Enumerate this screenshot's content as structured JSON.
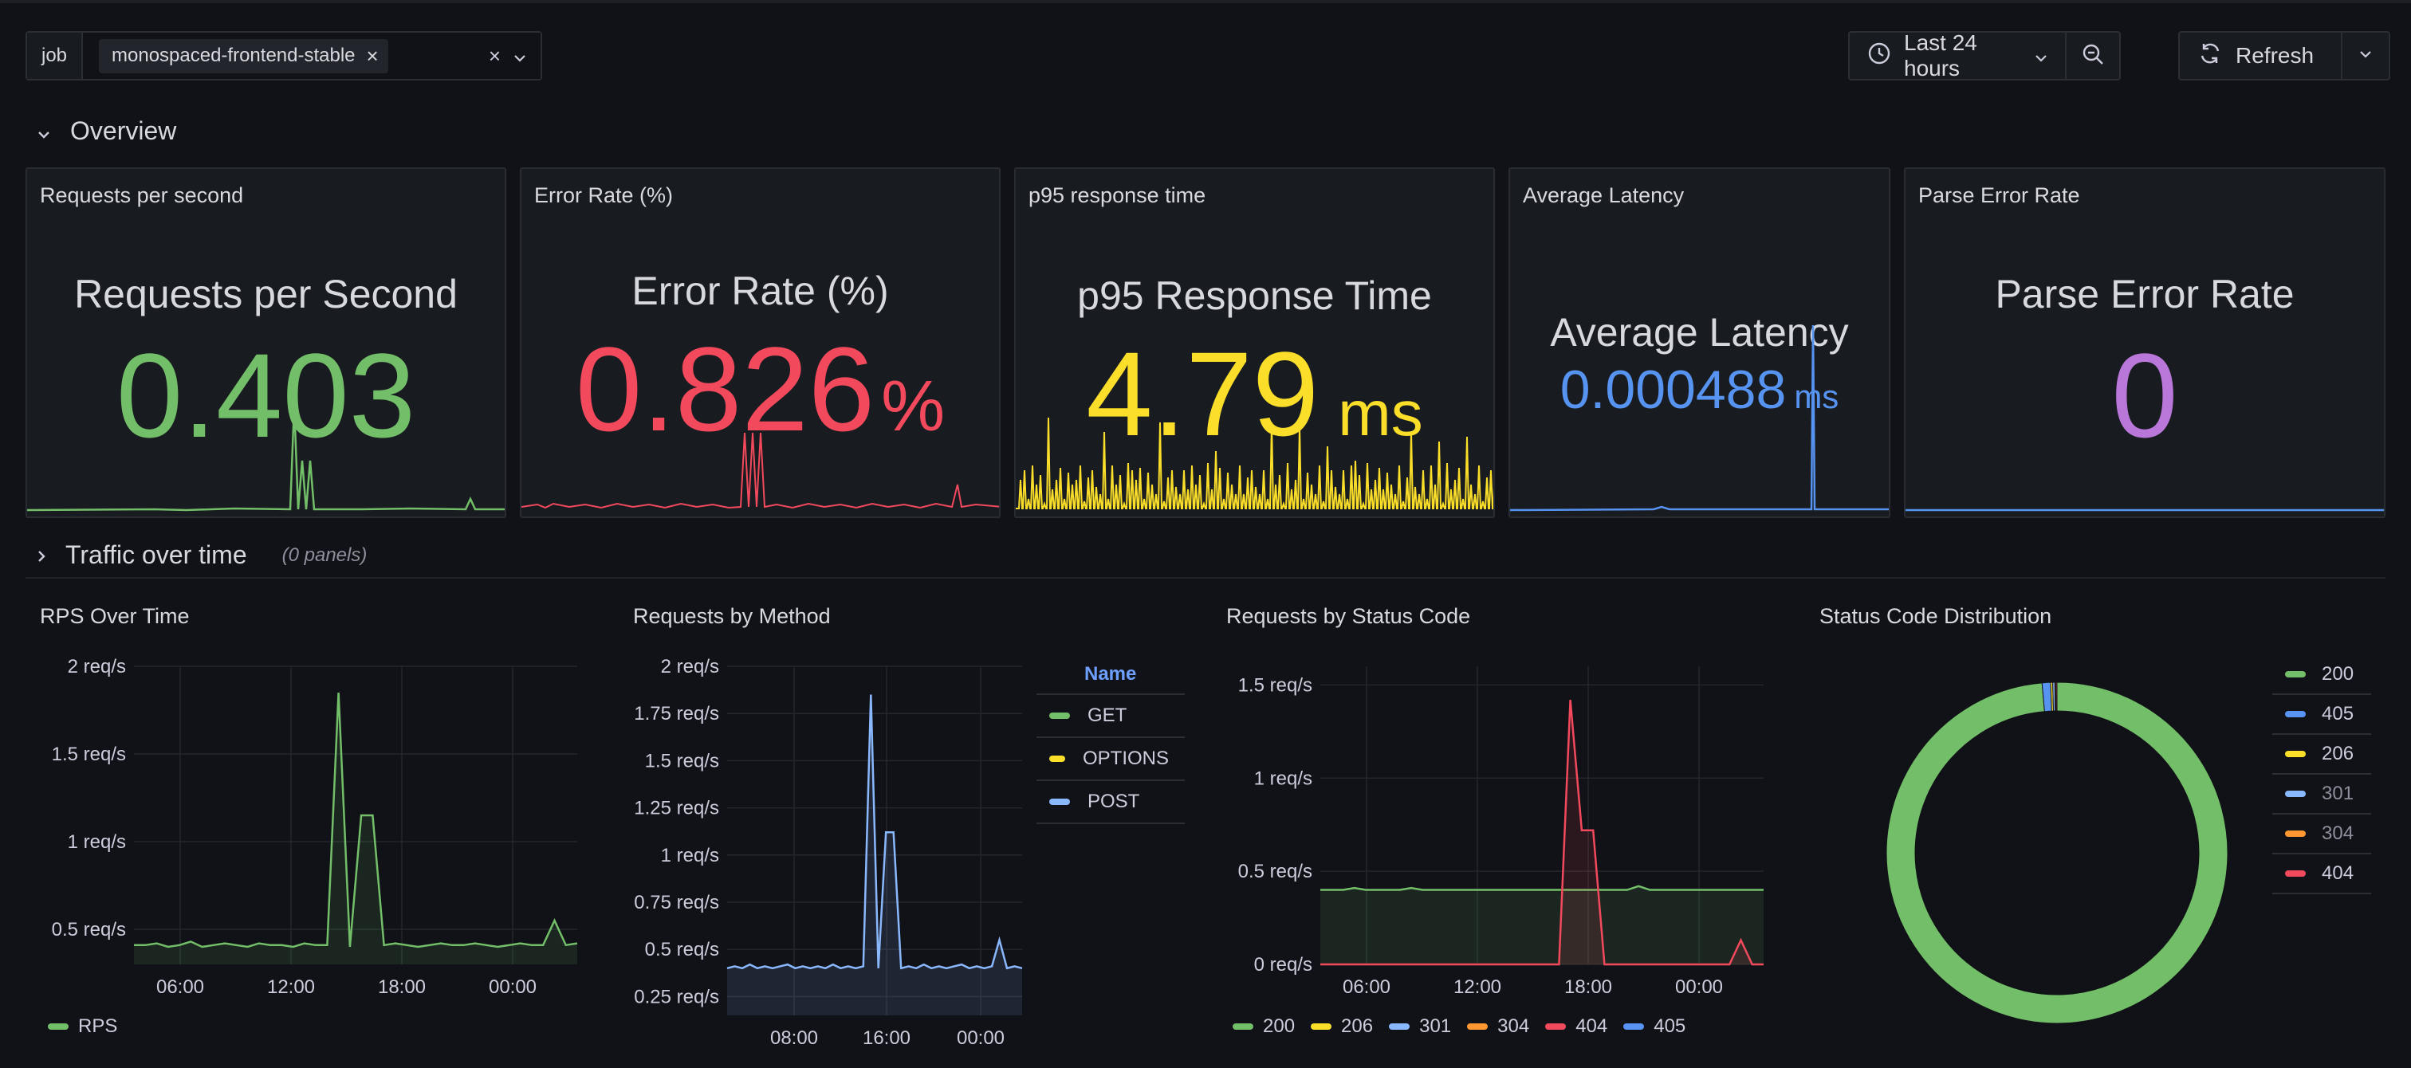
{
  "variables": {
    "job_label": "job",
    "job_value": "monospaced-frontend-stable"
  },
  "time_range": {
    "label": "Last 24 hours"
  },
  "refresh": {
    "label": "Refresh"
  },
  "rows": {
    "overview": {
      "title": "Overview"
    },
    "traffic": {
      "title": "Traffic over time",
      "sub": "(0 panels)"
    }
  },
  "stats": [
    {
      "panel_title": "Requests per second",
      "title": "Requests per Second",
      "value": "0.403",
      "unit": "",
      "color": "#73bf69"
    },
    {
      "panel_title": "Error Rate (%)",
      "title": "Error Rate (%)",
      "value": "0.826",
      "unit": "%",
      "color": "#f2495c"
    },
    {
      "panel_title": "p95 response time",
      "title": "p95 Response Time",
      "value": "4.79",
      "unit": "ms",
      "color": "#fade2a"
    },
    {
      "panel_title": "Average Latency",
      "title": "Average Latency",
      "value": "0.000488",
      "unit": "ms",
      "color": "#5794f2"
    },
    {
      "panel_title": "Parse Error Rate",
      "title": "Parse Error Rate",
      "value": "0",
      "unit": "",
      "color": "#b877d9"
    }
  ],
  "chart_data": [
    {
      "type": "line",
      "title": "RPS Over Time",
      "x_ticks": [
        "06:00",
        "12:00",
        "18:00",
        "00:00"
      ],
      "y_ticks": [
        "2 req/s",
        "1.5 req/s",
        "1 req/s",
        "0.5 req/s"
      ],
      "ylim": [
        0.3,
        2.0
      ],
      "series": [
        {
          "name": "RPS",
          "color": "#73bf69",
          "values": [
            0.41,
            0.41,
            0.42,
            0.4,
            0.41,
            0.43,
            0.4,
            0.41,
            0.42,
            0.41,
            0.4,
            0.42,
            0.41,
            0.41,
            0.4,
            0.42,
            0.41,
            0.41,
            1.85,
            0.4,
            1.15,
            1.15,
            0.41,
            0.42,
            0.41,
            0.4,
            0.41,
            0.42,
            0.41,
            0.41,
            0.42,
            0.41,
            0.4,
            0.41,
            0.42,
            0.41,
            0.41,
            0.55,
            0.41,
            0.42
          ]
        }
      ]
    },
    {
      "type": "line",
      "title": "Requests by Method",
      "x_ticks": [
        "08:00",
        "16:00",
        "00:00"
      ],
      "y_ticks": [
        "2 req/s",
        "1.75 req/s",
        "1.5 req/s",
        "1.25 req/s",
        "1 req/s",
        "0.75 req/s",
        "0.5 req/s",
        "0.25 req/s"
      ],
      "ylim": [
        0.15,
        2.0
      ],
      "legend_header": "Name",
      "series": [
        {
          "name": "GET",
          "color": "#73bf69",
          "values": []
        },
        {
          "name": "OPTIONS",
          "color": "#fade2a",
          "values": []
        },
        {
          "name": "POST",
          "color": "#8ab8ff",
          "values": [
            0.4,
            0.41,
            0.4,
            0.42,
            0.4,
            0.41,
            0.4,
            0.41,
            0.42,
            0.4,
            0.41,
            0.4,
            0.41,
            0.4,
            0.42,
            0.4,
            0.41,
            0.4,
            0.41,
            1.85,
            0.4,
            1.12,
            1.12,
            0.4,
            0.41,
            0.4,
            0.42,
            0.4,
            0.41,
            0.4,
            0.41,
            0.42,
            0.4,
            0.41,
            0.4,
            0.41,
            0.55,
            0.4,
            0.41,
            0.4
          ]
        }
      ]
    },
    {
      "type": "area",
      "title": "Requests by Status Code",
      "x_ticks": [
        "06:00",
        "12:00",
        "18:00",
        "00:00"
      ],
      "y_ticks": [
        "1.5 req/s",
        "1 req/s",
        "0.5 req/s",
        "0 req/s"
      ],
      "ylim": [
        0,
        1.6
      ],
      "series": [
        {
          "name": "200",
          "color": "#73bf69",
          "values": [
            0.4,
            0.4,
            0.4,
            0.41,
            0.4,
            0.4,
            0.4,
            0.4,
            0.41,
            0.4,
            0.4,
            0.4,
            0.4,
            0.4,
            0.4,
            0.4,
            0.4,
            0.4,
            0.4,
            0.4,
            0.4,
            0.4,
            0.4,
            0.4,
            0.4,
            0.4,
            0.4,
            0.4,
            0.42,
            0.4,
            0.4,
            0.4,
            0.4,
            0.4,
            0.4,
            0.4,
            0.4,
            0.4,
            0.4,
            0.4
          ]
        },
        {
          "name": "206",
          "color": "#fade2a",
          "values": []
        },
        {
          "name": "301",
          "color": "#8ab8ff",
          "values": []
        },
        {
          "name": "304",
          "color": "#ff9830",
          "values": []
        },
        {
          "name": "404",
          "color": "#f2495c",
          "values": [
            0,
            0,
            0,
            0,
            0,
            0,
            0,
            0,
            0,
            0,
            0,
            0,
            0,
            0,
            0,
            0,
            0,
            0,
            0,
            0,
            0,
            0,
            1.42,
            0.72,
            0.72,
            0,
            0,
            0,
            0,
            0,
            0,
            0,
            0,
            0,
            0,
            0,
            0,
            0.13,
            0,
            0
          ]
        },
        {
          "name": "405",
          "color": "#5794f2",
          "values": []
        }
      ]
    },
    {
      "type": "pie",
      "title": "Status Code Distribution",
      "slices": [
        {
          "label": "200",
          "value": 98.6,
          "color": "#73bf69"
        },
        {
          "label": "405",
          "value": 0.8,
          "color": "#5794f2"
        },
        {
          "label": "206",
          "value": 0.2,
          "color": "#fade2a"
        },
        {
          "label": "301",
          "value": 0.2,
          "color": "#8ab8ff"
        },
        {
          "label": "304",
          "value": 0.1,
          "color": "#ff9830"
        },
        {
          "label": "404",
          "value": 0.1,
          "color": "#f2495c"
        }
      ]
    }
  ]
}
